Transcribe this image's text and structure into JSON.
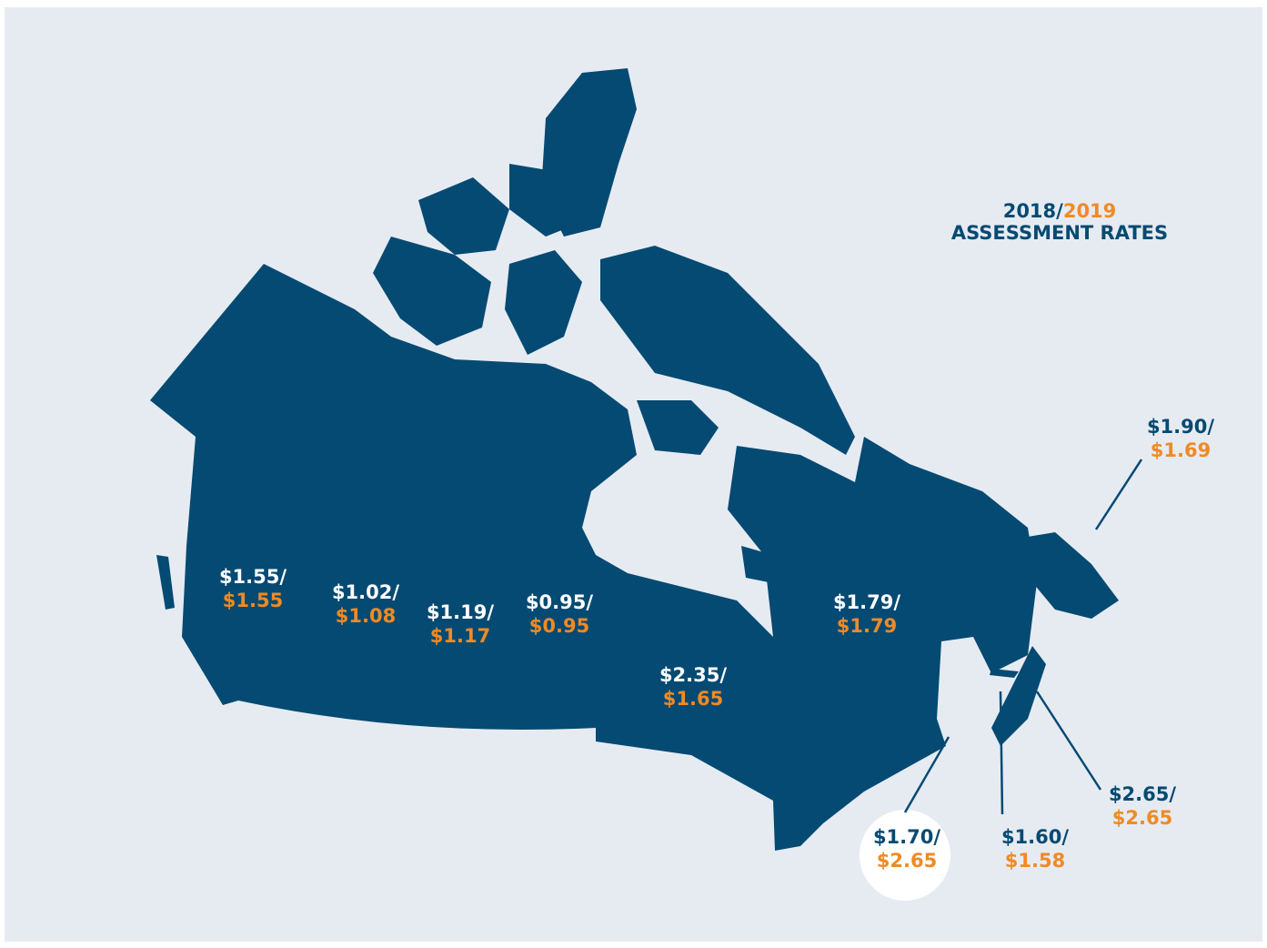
{
  "title": {
    "year_a": "2018/",
    "year_b": "2019",
    "subtitle": "ASSESSMENT RATES"
  },
  "rates": [
    {
      "rate_2018": "$1.55/",
      "rate_2019": "$1.55"
    },
    {
      "rate_2018": "$1.02/",
      "rate_2019": "$1.08"
    },
    {
      "rate_2018": "$1.19/",
      "rate_2019": "$1.17"
    },
    {
      "rate_2018": "$0.95/",
      "rate_2019": "$0.95"
    },
    {
      "rate_2018": "$2.35/",
      "rate_2019": "$1.65"
    },
    {
      "rate_2018": "$1.79/",
      "rate_2019": "$1.79"
    },
    {
      "rate_2018": "$1.90/",
      "rate_2019": "$1.69"
    },
    {
      "rate_2018": "$1.70/",
      "rate_2019": "$2.65"
    },
    {
      "rate_2018": "$1.60/",
      "rate_2019": "$1.58"
    },
    {
      "rate_2018": "$2.65/",
      "rate_2019": "$2.65"
    }
  ]
}
